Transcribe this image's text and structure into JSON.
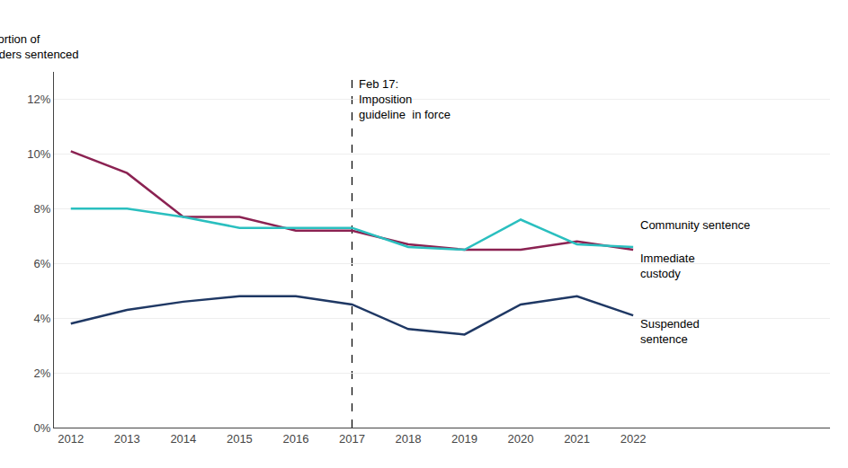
{
  "chart_data": {
    "type": "line",
    "x": [
      2012,
      2013,
      2014,
      2015,
      2016,
      2017,
      2018,
      2019,
      2020,
      2021,
      2022
    ],
    "series": [
      {
        "name": "Immediate\ncustody",
        "color": "#8B2252",
        "values": [
          0.101,
          0.093,
          0.077,
          0.077,
          0.072,
          0.072,
          0.067,
          0.065,
          0.065,
          0.068,
          0.065
        ]
      },
      {
        "name": "Community sentence",
        "color": "#2ABFBF",
        "values": [
          0.08,
          0.08,
          0.077,
          0.073,
          0.073,
          0.073,
          0.066,
          0.065,
          0.076,
          0.067,
          0.066
        ]
      },
      {
        "name": "Suspended\nsentence",
        "color": "#1F3864",
        "values": [
          0.038,
          0.043,
          0.046,
          0.048,
          0.048,
          0.045,
          0.036,
          0.034,
          0.045,
          0.048,
          0.041
        ]
      }
    ],
    "ylabel": "Proportion of\noffenders sentenced",
    "vline": {
      "x": 2017,
      "text": "Feb 17:\nImposition\nguideline  in force"
    },
    "xlim": [
      2011.7,
      2025.5
    ],
    "xticks": [
      2012,
      2013,
      2014,
      2015,
      2016,
      2017,
      2018,
      2019,
      2020,
      2021,
      2022
    ],
    "ylim": [
      0,
      0.13
    ],
    "yticks": [
      {
        "value": 0,
        "label": "0%"
      },
      {
        "value": 0.02,
        "label": "2%"
      },
      {
        "value": 0.04,
        "label": "4%"
      },
      {
        "value": 0.06,
        "label": "6%"
      },
      {
        "value": 0.08,
        "label": "8%"
      },
      {
        "value": 0.1,
        "label": "10%"
      },
      {
        "value": 0.12,
        "label": "12%"
      }
    ],
    "grid": "y"
  }
}
